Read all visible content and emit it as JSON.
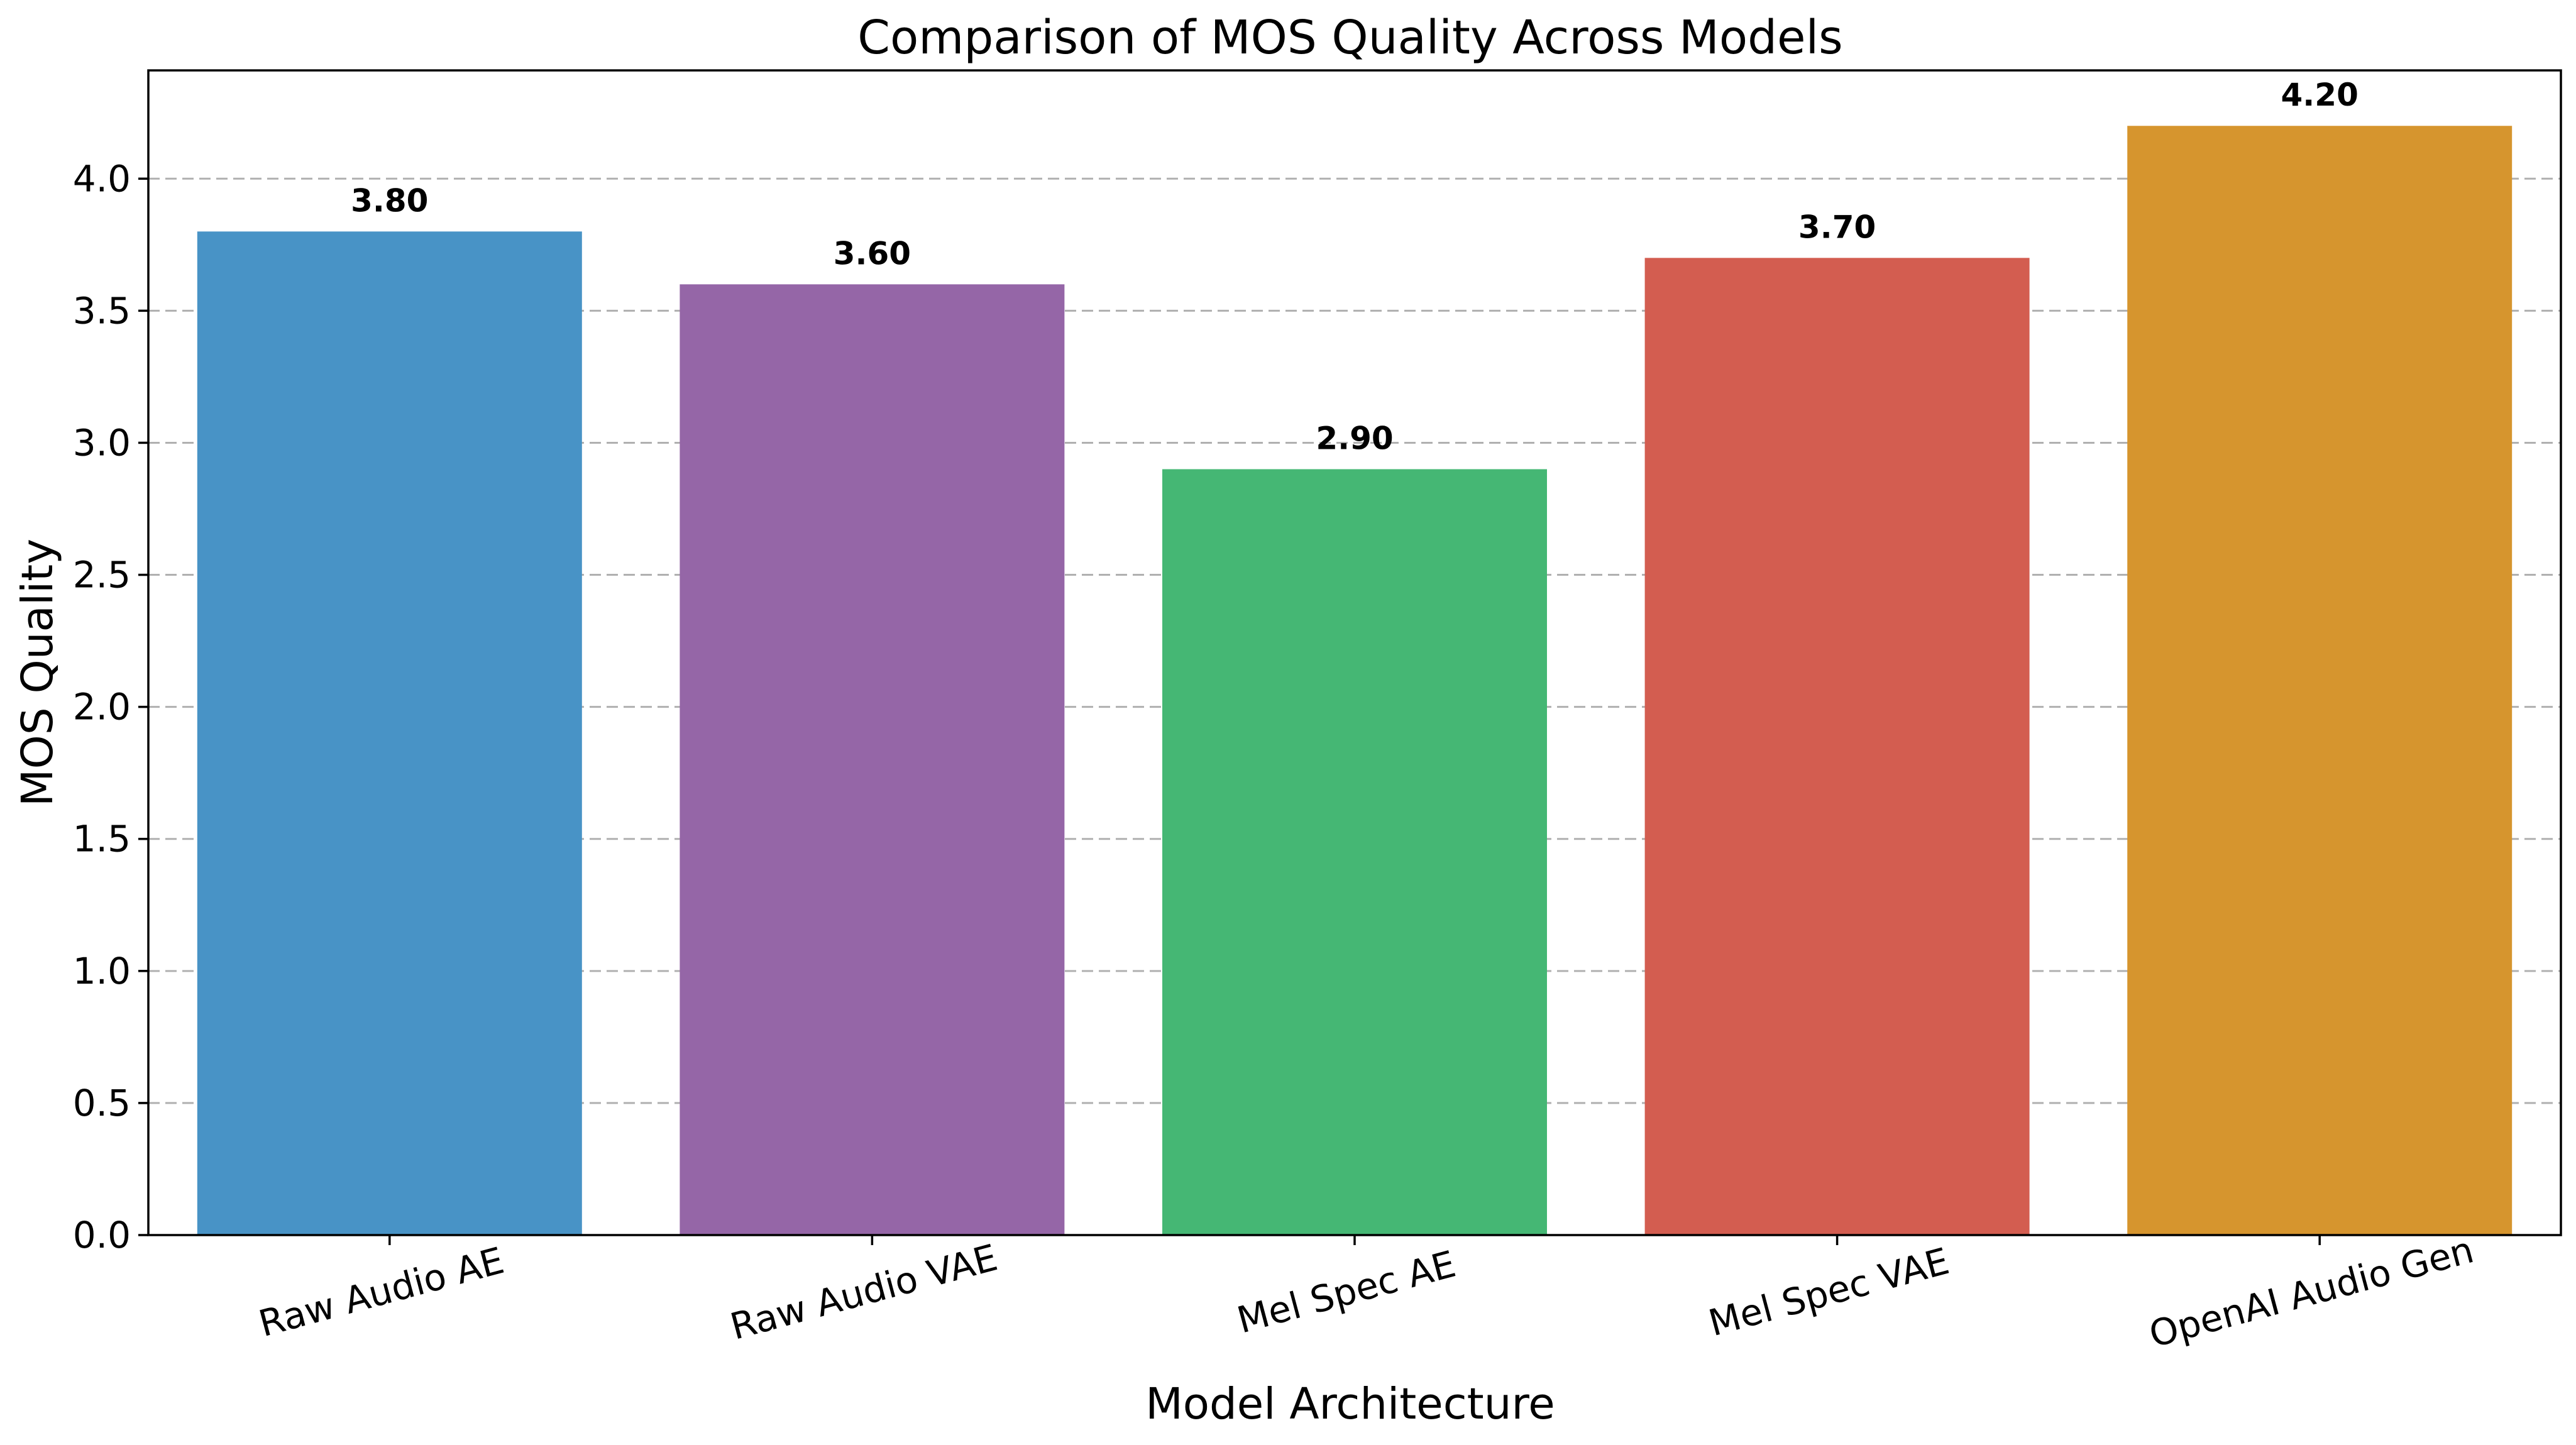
{
  "chart_data": {
    "type": "bar",
    "title": "Comparison of MOS Quality Across Models",
    "xlabel": "Model Architecture",
    "ylabel": "MOS Quality",
    "categories": [
      "Raw Audio AE",
      "Raw Audio VAE",
      "Mel Spec AE",
      "Mel Spec VAE",
      "OpenAI Audio Gen"
    ],
    "values": [
      3.8,
      3.6,
      2.9,
      3.7,
      4.2
    ],
    "value_labels": [
      "3.80",
      "3.60",
      "2.90",
      "3.70",
      "4.20"
    ],
    "colors": [
      "#4893c6",
      "#9566a7",
      "#45b774",
      "#d35d50",
      "#d6952e"
    ],
    "ylim": [
      0,
      4.41
    ],
    "yticks": [
      0.0,
      0.5,
      1.0,
      1.5,
      2.0,
      2.5,
      3.0,
      3.5,
      4.0
    ],
    "ytick_labels": [
      "0.0",
      "0.5",
      "1.0",
      "1.5",
      "2.0",
      "2.5",
      "3.0",
      "3.5",
      "4.0"
    ],
    "grid": "y",
    "legend": "none"
  }
}
